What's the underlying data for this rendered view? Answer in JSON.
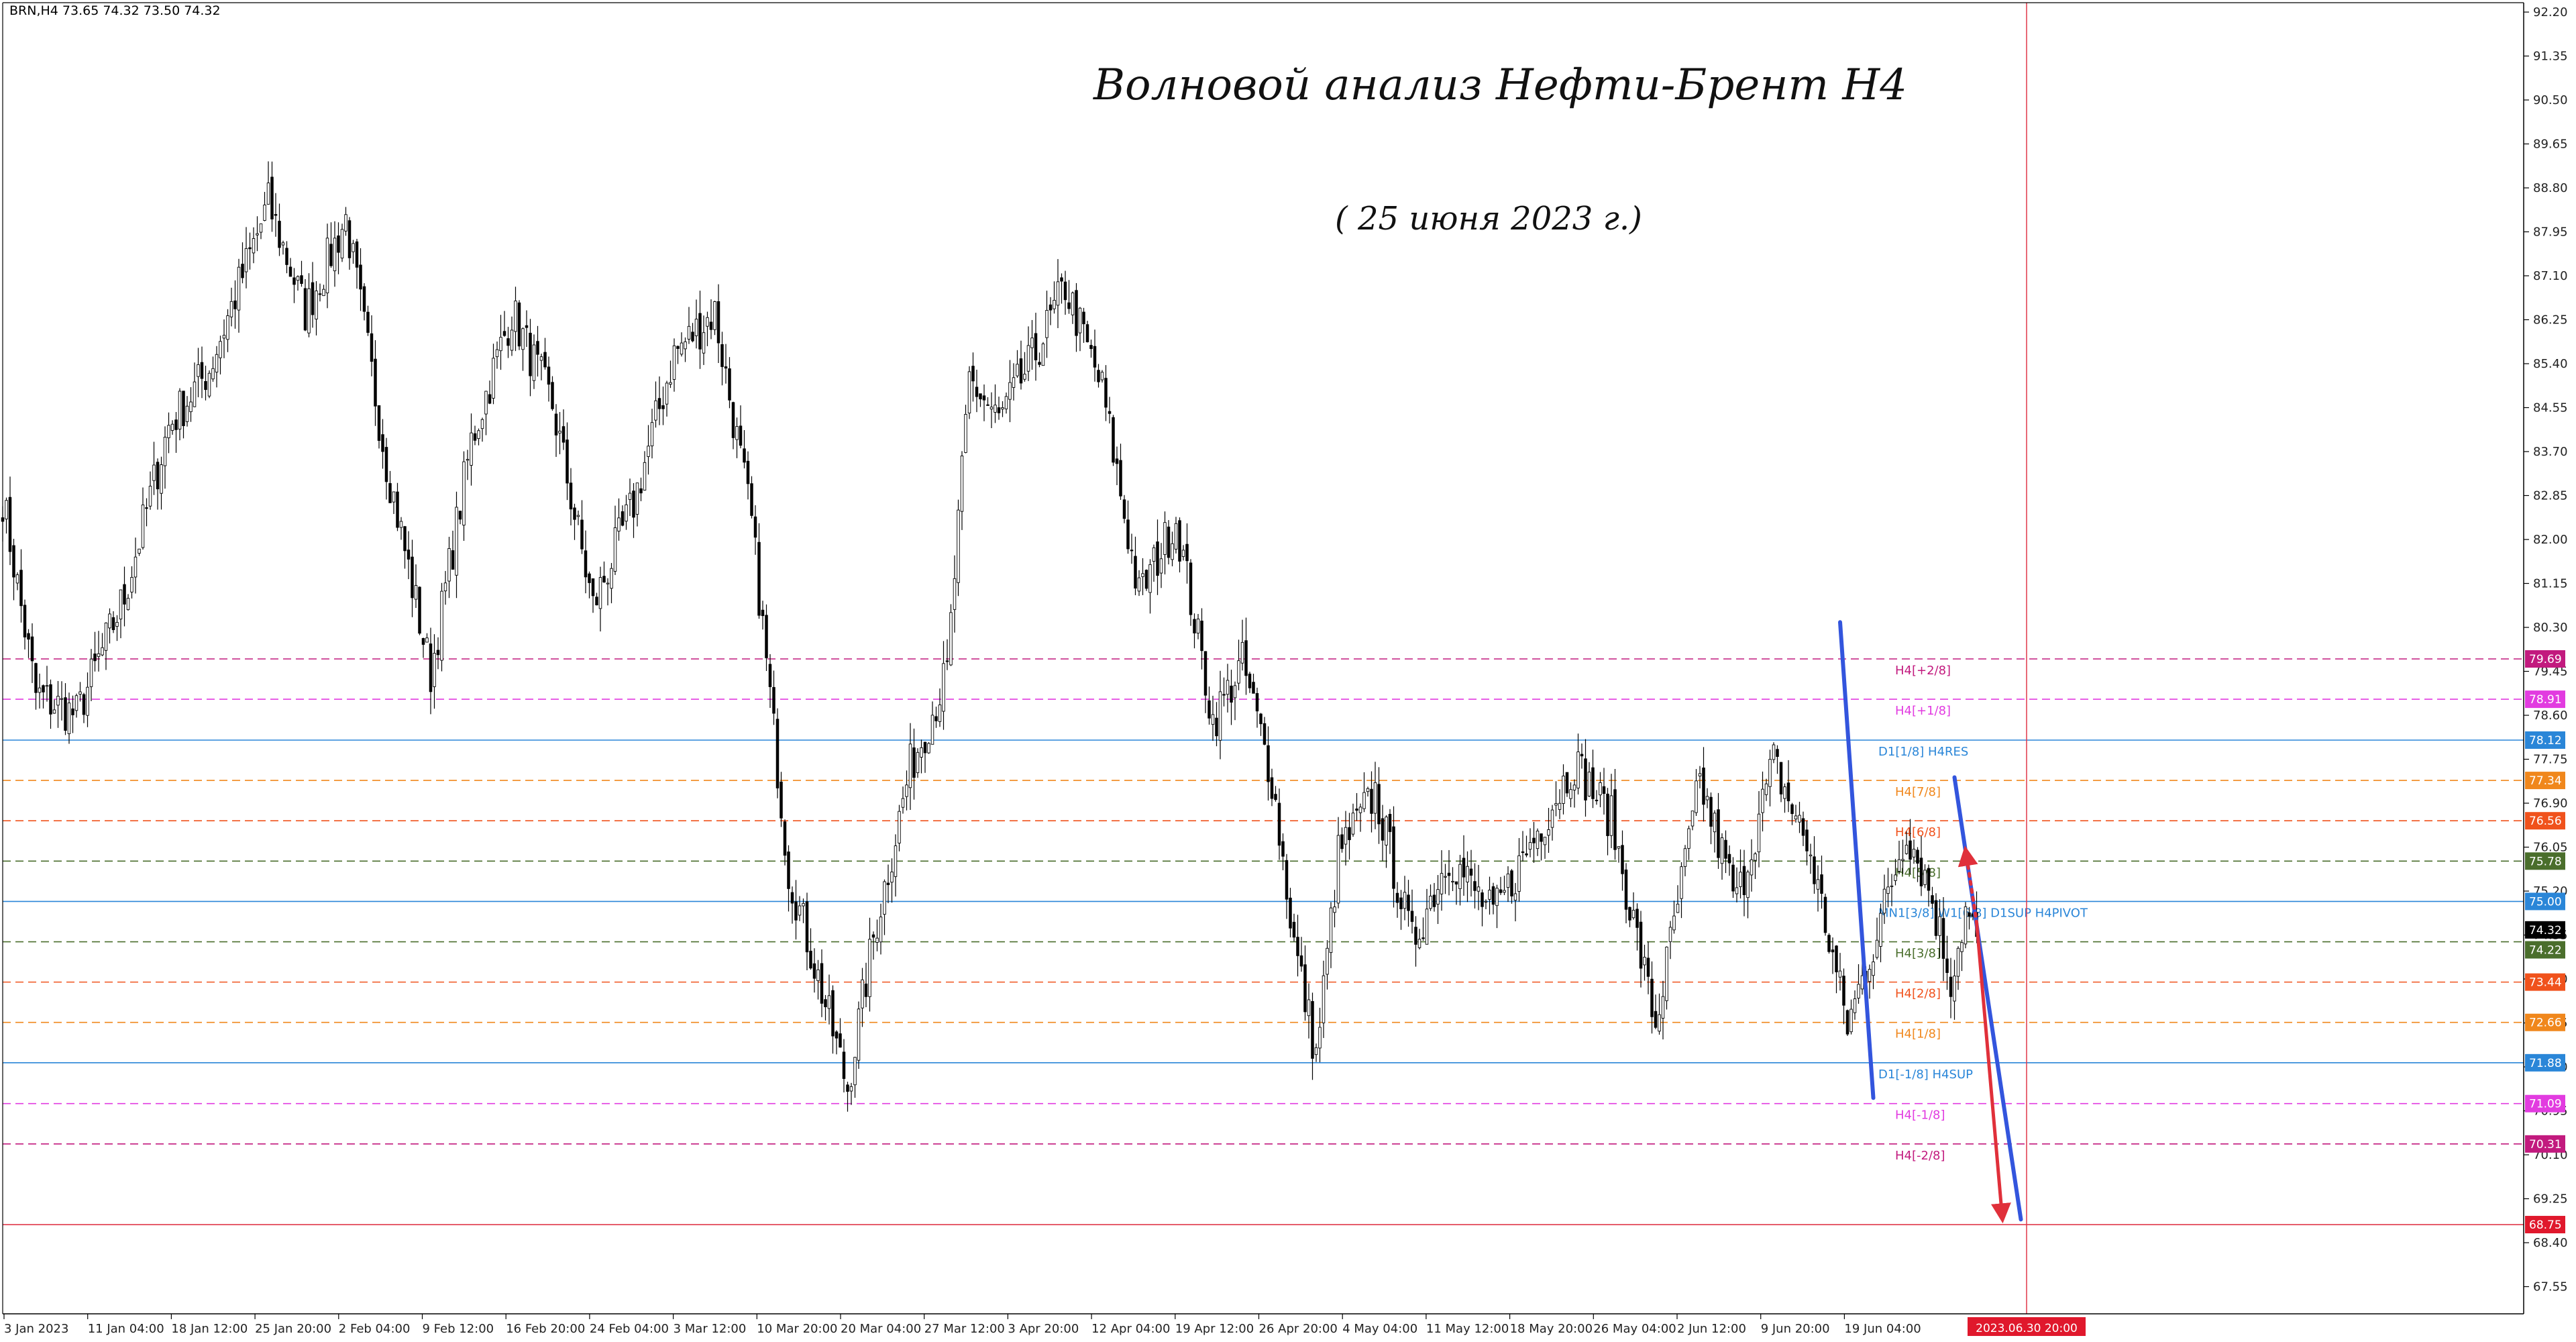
{
  "header": {
    "symbol_info": "BRN,H4  73.65 74.32 73.50 74.32"
  },
  "annotations": {
    "title": "Волновой анализ Нефти-Брент H4",
    "subtitle": "( 25 июня 2023 г.)"
  },
  "chart_data": {
    "type": "candlestick",
    "title": "Волновой анализ Нефти-Брент H4",
    "subtitle": "( 25 июня 2023 г.)",
    "symbol": "BRN",
    "timeframe": "H4",
    "ylim": [
      67.0,
      92.5
    ],
    "y_ticks": [
      "92.20",
      "91.35",
      "90.50",
      "89.65",
      "88.80",
      "87.95",
      "87.10",
      "86.25",
      "85.40",
      "84.55",
      "83.70",
      "82.85",
      "82.00",
      "81.15",
      "80.30",
      "79.45",
      "78.60",
      "77.75",
      "76.90",
      "76.05",
      "75.20",
      "74.35",
      "73.50",
      "72.65",
      "71.80",
      "70.95",
      "70.10",
      "69.25",
      "68.40",
      "67.55"
    ],
    "x_ticks": [
      "3 Jan 2023",
      "11 Jan 04:00",
      "18 Jan 12:00",
      "25 Jan 20:00",
      "2 Feb 04:00",
      "9 Feb 12:00",
      "16 Feb 20:00",
      "24 Feb 04:00",
      "3 Mar 12:00",
      "10 Mar 20:00",
      "20 Mar 04:00",
      "27 Mar 12:00",
      "3 Apr 20:00",
      "12 Apr 04:00",
      "19 Apr 12:00",
      "26 Apr 20:00",
      "4 May 04:00",
      "11 May 12:00",
      "18 May 20:00",
      "26 May 04:00",
      "2 Jun 12:00",
      "9 Jun 20:00",
      "19 Jun 04:00"
    ],
    "price_path": [
      [
        0,
        82.8
      ],
      [
        9,
        79.0
      ],
      [
        20,
        78.6
      ],
      [
        33,
        80.9
      ],
      [
        45,
        84.2
      ],
      [
        56,
        85.3
      ],
      [
        72,
        88.5
      ],
      [
        82,
        86.4
      ],
      [
        93,
        88.2
      ],
      [
        104,
        83.5
      ],
      [
        116,
        79.4
      ],
      [
        127,
        83.9
      ],
      [
        138,
        86.4
      ],
      [
        149,
        84.6
      ],
      [
        160,
        80.7
      ],
      [
        171,
        82.7
      ],
      [
        182,
        85.6
      ],
      [
        193,
        86.4
      ],
      [
        203,
        82.3
      ],
      [
        213,
        75.6
      ],
      [
        223,
        73.0
      ],
      [
        229,
        71.4
      ],
      [
        236,
        74.3
      ],
      [
        246,
        77.6
      ],
      [
        256,
        79.4
      ],
      [
        262,
        85.1
      ],
      [
        270,
        84.3
      ],
      [
        280,
        85.6
      ],
      [
        288,
        86.9
      ],
      [
        298,
        84.9
      ],
      [
        308,
        80.9
      ],
      [
        318,
        82.4
      ],
      [
        328,
        78.5
      ],
      [
        336,
        79.6
      ],
      [
        344,
        77.4
      ],
      [
        350,
        74.2
      ],
      [
        356,
        72.0
      ],
      [
        362,
        75.9
      ],
      [
        372,
        77.1
      ],
      [
        382,
        74.2
      ],
      [
        392,
        75.9
      ],
      [
        404,
        74.7
      ],
      [
        414,
        76.1
      ],
      [
        426,
        77.7
      ],
      [
        436,
        76.6
      ],
      [
        448,
        72.6
      ],
      [
        460,
        77.3
      ],
      [
        470,
        75.0
      ],
      [
        480,
        77.7
      ],
      [
        490,
        75.9
      ],
      [
        500,
        72.6
      ],
      [
        508,
        74.4
      ],
      [
        516,
        76.4
      ],
      [
        522,
        75.3
      ],
      [
        528,
        73.5
      ],
      [
        532,
        74.8
      ],
      [
        535,
        74.32
      ]
    ],
    "levels": [
      {
        "price": 79.69,
        "label": "H4[+2/8]",
        "color": "#c21a7e",
        "style": "dash"
      },
      {
        "price": 78.91,
        "label": "H4[+1/8]",
        "color": "#e23be0",
        "style": "dash"
      },
      {
        "price": 78.12,
        "label": "D1[1/8] H4RES",
        "color": "#2a86d8",
        "style": "solid"
      },
      {
        "price": 77.34,
        "label": "H4[7/8]",
        "color": "#f0871c",
        "style": "dash"
      },
      {
        "price": 76.56,
        "label": "H4[6/8]",
        "color": "#f0521c",
        "style": "dash"
      },
      {
        "price": 75.78,
        "label": "H4[5/8]",
        "color": "#4a6e2c",
        "style": "dash"
      },
      {
        "price": 75.0,
        "label": "MN1[3/8] W1[6/8] D1SUP H4PIVOT",
        "color": "#2a86d8",
        "style": "solid"
      },
      {
        "price": 74.22,
        "label": "H4[3/8]",
        "color": "#4a6e2c",
        "style": "dash"
      },
      {
        "price": 73.44,
        "label": "H4[2/8]",
        "color": "#f0521c",
        "style": "dash"
      },
      {
        "price": 72.66,
        "label": "H4[1/8]",
        "color": "#f0871c",
        "style": "dash"
      },
      {
        "price": 71.88,
        "label": "D1[-1/8] H4SUP",
        "color": "#2a86d8",
        "style": "solid"
      },
      {
        "price": 71.09,
        "label": "H4[-1/8]",
        "color": "#e23be0",
        "style": "dash"
      },
      {
        "price": 70.31,
        "label": "H4[-2/8]",
        "color": "#c21a7e",
        "style": "dash"
      },
      {
        "price": 68.75,
        "label": "",
        "color": "#e0384a",
        "style": "solid"
      }
    ],
    "price_badges": [
      {
        "price": 79.69,
        "text": "79.69",
        "color": "#c21a7e"
      },
      {
        "price": 78.91,
        "text": "78.91",
        "color": "#e23be0"
      },
      {
        "price": 78.12,
        "text": "78.12",
        "color": "#2a86d8"
      },
      {
        "price": 77.34,
        "text": "77.34",
        "color": "#f0871c"
      },
      {
        "price": 76.56,
        "text": "76.56",
        "color": "#f0521c"
      },
      {
        "price": 75.78,
        "text": "75.78",
        "color": "#4a6e2c"
      },
      {
        "price": 75.0,
        "text": "75.00",
        "color": "#2a86d8"
      },
      {
        "price": 74.32,
        "text": "74.32",
        "color": "#000000"
      },
      {
        "price": 74.22,
        "text": "74.22",
        "color": "#4a6e2c"
      },
      {
        "price": 73.44,
        "text": "73.44",
        "color": "#f0521c"
      },
      {
        "price": 72.66,
        "text": "72.66",
        "color": "#f0871c"
      },
      {
        "price": 71.88,
        "text": "71.88",
        "color": "#2a86d8"
      },
      {
        "price": 71.09,
        "text": "71.09",
        "color": "#e23be0"
      },
      {
        "price": 70.31,
        "text": "70.31",
        "color": "#c21a7e"
      },
      {
        "price": 68.75,
        "text": "68.75",
        "color": "#e0182c"
      }
    ],
    "vertical_marker": {
      "date_label": "2023.06.30 20:00",
      "color": "#e0384a"
    },
    "wave_lines": [
      {
        "from": [
          498,
          80.4
        ],
        "to": [
          507,
          71.2
        ],
        "color": "#3355dd"
      },
      {
        "from": [
          529,
          77.4
        ],
        "to": [
          547,
          68.85
        ],
        "color": "#3355dd"
      },
      {
        "from": [
          532,
          76.0
        ],
        "to": [
          535,
          74.6
        ],
        "color": "#e0303a",
        "style": "dot"
      },
      {
        "from": [
          535,
          74.6
        ],
        "to": [
          542,
          68.85
        ],
        "color": "#e0303a"
      }
    ],
    "colors": {
      "bull": "#ffffff",
      "bear": "#000000",
      "wick": "#000000",
      "grid": "#ffffff",
      "axis": "#000000"
    }
  }
}
